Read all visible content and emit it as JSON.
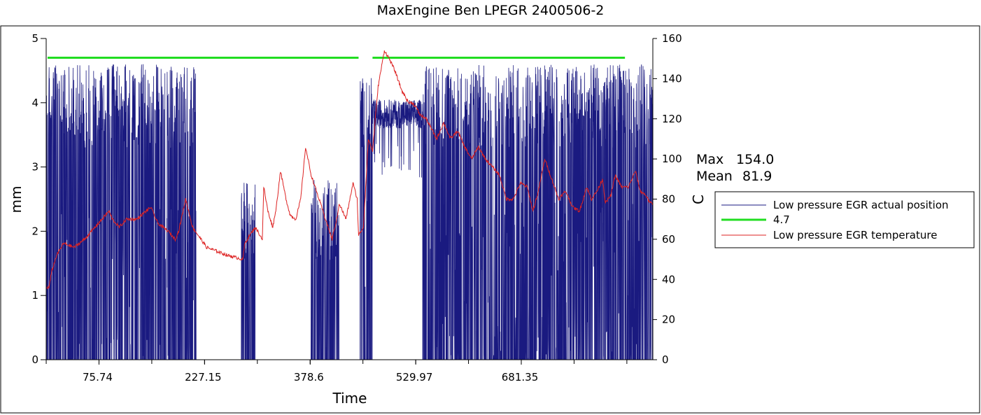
{
  "chart_data": {
    "type": "line",
    "title": "MaxEngine Ben   LPEGR 2400506-2",
    "xlabel": "Time",
    "ylabel_left": "mm",
    "ylabel_right": "C",
    "xlim": [
      0,
      870
    ],
    "ylim_left": [
      0,
      5
    ],
    "ylim_right": [
      0,
      160
    ],
    "x_tick_labels": [
      {
        "x": 75.74,
        "label": "75.74"
      },
      {
        "x": 227.15,
        "label": "227.15"
      },
      {
        "x": 378.6,
        "label": "378.6"
      },
      {
        "x": 529.97,
        "label": "529.97"
      },
      {
        "x": 681.35,
        "label": "681.35"
      }
    ],
    "x_minor_ticks": [
      1190,
      1270,
      1350,
      1440,
      1520,
      1590,
      1670,
      1760,
      1830,
      1910,
      1990,
      2080,
      2160,
      2240
    ],
    "y_left_ticks": [
      0,
      1,
      2,
      3,
      4,
      5
    ],
    "y_right_ticks": [
      0,
      20,
      40,
      60,
      80,
      100,
      120,
      140,
      160
    ],
    "grid": false,
    "legend_position": "right",
    "stats": {
      "max_label": "Max",
      "max_value": "154.0",
      "mean_label": "Mean",
      "mean_value": "81.9"
    },
    "series": [
      {
        "name": "Low pressure EGR actual position",
        "axis": "left",
        "color": "#1a1a80",
        "samples_per_x": 4,
        "bursts": [
          {
            "x0": 0,
            "x1": 215,
            "mode": "high",
            "peak": 4.6
          },
          {
            "x0": 280,
            "x1": 300,
            "mode": "mid",
            "peak": 2.8
          },
          {
            "x0": 380,
            "x1": 420,
            "mode": "mid",
            "peak": 2.8
          },
          {
            "x0": 450,
            "x1": 468,
            "mode": "high",
            "peak": 4.4
          },
          {
            "x0": 468,
            "x1": 540,
            "mode": "steady",
            "peak": 4.0
          },
          {
            "x0": 540,
            "x1": 870,
            "mode": "high",
            "peak": 4.6
          }
        ]
      },
      {
        "name": "4.7",
        "axis": "left",
        "color": "#22dd22",
        "segments": [
          {
            "x0": 2,
            "x1": 448,
            "y": 4.7
          },
          {
            "x0": 468,
            "x1": 830,
            "y": 4.7
          }
        ]
      },
      {
        "name": "Low pressure EGR temperature",
        "axis": "right",
        "color": "#dd2222",
        "points": [
          [
            0,
            36
          ],
          [
            4,
            36
          ],
          [
            8,
            44
          ],
          [
            15,
            52
          ],
          [
            25,
            58
          ],
          [
            40,
            56
          ],
          [
            55,
            60
          ],
          [
            70,
            66
          ],
          [
            80,
            70
          ],
          [
            90,
            74
          ],
          [
            95,
            70
          ],
          [
            105,
            66
          ],
          [
            115,
            70
          ],
          [
            130,
            70
          ],
          [
            150,
            76
          ],
          [
            160,
            68
          ],
          [
            175,
            64
          ],
          [
            185,
            60
          ],
          [
            190,
            64
          ],
          [
            200,
            80
          ],
          [
            210,
            66
          ],
          [
            230,
            56
          ],
          [
            260,
            52
          ],
          [
            282,
            50
          ],
          [
            285,
            58
          ],
          [
            292,
            62
          ],
          [
            300,
            66
          ],
          [
            310,
            60
          ],
          [
            312,
            86
          ],
          [
            318,
            74
          ],
          [
            325,
            66
          ],
          [
            330,
            76
          ],
          [
            336,
            94
          ],
          [
            344,
            80
          ],
          [
            350,
            72
          ],
          [
            358,
            70
          ],
          [
            365,
            80
          ],
          [
            372,
            106
          ],
          [
            380,
            92
          ],
          [
            395,
            76
          ],
          [
            410,
            60
          ],
          [
            418,
            72
          ],
          [
            420,
            78
          ],
          [
            430,
            70
          ],
          [
            440,
            88
          ],
          [
            446,
            80
          ],
          [
            448,
            62
          ],
          [
            455,
            66
          ],
          [
            462,
            110
          ],
          [
            468,
            104
          ],
          [
            476,
            136
          ],
          [
            485,
            154
          ],
          [
            492,
            150
          ],
          [
            500,
            144
          ],
          [
            510,
            134
          ],
          [
            520,
            128
          ],
          [
            525,
            128
          ],
          [
            530,
            126
          ],
          [
            536,
            122
          ],
          [
            545,
            120
          ],
          [
            560,
            110
          ],
          [
            570,
            118
          ],
          [
            580,
            110
          ],
          [
            590,
            114
          ],
          [
            600,
            106
          ],
          [
            610,
            100
          ],
          [
            620,
            106
          ],
          [
            630,
            100
          ],
          [
            640,
            96
          ],
          [
            650,
            92
          ],
          [
            660,
            80
          ],
          [
            670,
            80
          ],
          [
            680,
            88
          ],
          [
            690,
            86
          ],
          [
            698,
            74
          ],
          [
            706,
            84
          ],
          [
            715,
            100
          ],
          [
            725,
            90
          ],
          [
            735,
            80
          ],
          [
            745,
            84
          ],
          [
            755,
            76
          ],
          [
            765,
            74
          ],
          [
            775,
            86
          ],
          [
            782,
            80
          ],
          [
            790,
            84
          ],
          [
            798,
            90
          ],
          [
            802,
            78
          ],
          [
            810,
            82
          ],
          [
            816,
            92
          ],
          [
            825,
            86
          ],
          [
            835,
            86
          ],
          [
            845,
            94
          ],
          [
            852,
            84
          ],
          [
            860,
            82
          ],
          [
            866,
            78
          ],
          [
            870,
            78
          ]
        ]
      }
    ]
  }
}
